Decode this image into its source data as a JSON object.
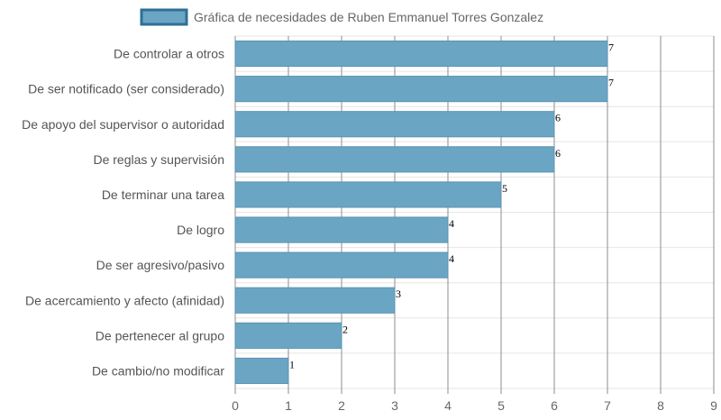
{
  "chart_data": {
    "type": "bar",
    "orientation": "horizontal",
    "categories": [
      "De controlar a otros",
      "De ser notificado (ser considerado)",
      "De apoyo del supervisor o autoridad",
      "De reglas y supervisión",
      "De terminar una tarea",
      "De logro",
      "De ser agresivo/pasivo",
      "De acercamiento y afecto (afinidad)",
      "De pertenecer al grupo",
      "De cambio/no modificar"
    ],
    "series": [
      {
        "name": "Gráfica de necesidades de Ruben Emmanuel Torres Gonzalez",
        "values": [
          7,
          7,
          6,
          6,
          5,
          4,
          4,
          3,
          2,
          1
        ]
      }
    ],
    "value_labels": [
      "7",
      "7",
      "6",
      "6",
      "5",
      "4",
      "4",
      "3",
      "2",
      "1"
    ],
    "xlim": [
      0,
      9
    ],
    "x_ticks": [
      "0",
      "1",
      "2",
      "3",
      "4",
      "5",
      "6",
      "7",
      "8",
      "9"
    ],
    "grid": true,
    "legend_position": "top-center",
    "colors": {
      "bar_fill": "#6ba5c4",
      "bar_stroke": "#5b93b3",
      "legend_fill": "#6ba5c4",
      "legend_stroke": "#2e6f96",
      "grid": "#e6e6e6",
      "tick_grid": "#8c8c8c"
    }
  }
}
